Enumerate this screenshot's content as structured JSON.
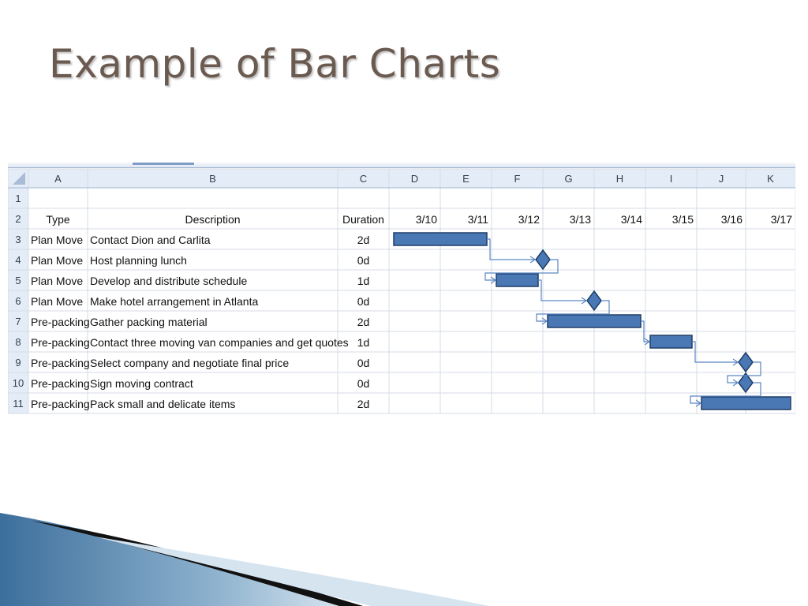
{
  "slide": {
    "title": "Example of Bar Charts"
  },
  "colors": {
    "title": "#6b5a50",
    "bar_fill": "#4a78b5",
    "bar_stroke": "#1f3d66",
    "arrow": "#5b86c3",
    "grid": "#d4dbe6",
    "header_fill": "#e4ecf7"
  },
  "sheet": {
    "column_headers": [
      "A",
      "B",
      "C",
      "D",
      "E",
      "F",
      "G",
      "H",
      "I",
      "J",
      "K"
    ],
    "row_numbers": [
      "1",
      "2",
      "3",
      "4",
      "5",
      "6",
      "7",
      "8",
      "9",
      "10",
      "11"
    ],
    "header_row": {
      "type": "Type",
      "description": "Description",
      "duration": "Duration"
    },
    "dates": [
      "3/10",
      "3/11",
      "3/12",
      "3/13",
      "3/14",
      "3/15",
      "3/16",
      "3/17"
    ]
  },
  "chart_data": {
    "type": "gantt",
    "x_axis_dates": [
      "3/10",
      "3/11",
      "3/12",
      "3/13",
      "3/14",
      "3/15",
      "3/16",
      "3/17"
    ],
    "tasks": [
      {
        "type": "Plan Move",
        "description": "Contact Dion and Carlita",
        "duration": "2d",
        "start": "3/10",
        "end": "3/11",
        "milestone": false
      },
      {
        "type": "Plan Move",
        "description": "Host planning  lunch",
        "duration": "0d",
        "start": "3/12",
        "end": "3/12",
        "milestone": true
      },
      {
        "type": "Plan Move",
        "description": "Develop and distribute schedule",
        "duration": "1d",
        "start": "3/12",
        "end": "3/12",
        "milestone": false
      },
      {
        "type": "Plan Move",
        "description": "Make hotel arrangement in Atlanta",
        "duration": "0d",
        "start": "3/13",
        "end": "3/13",
        "milestone": true
      },
      {
        "type": "Pre-packing",
        "description": "Gather packing material",
        "duration": "2d",
        "start": "3/13",
        "end": "3/14",
        "milestone": false
      },
      {
        "type": "Pre-packing",
        "description": "Contact three moving van companies and get quotes",
        "duration": "1d",
        "start": "3/15",
        "end": "3/15",
        "milestone": false
      },
      {
        "type": "Pre-packing",
        "description": "Select company and negotiate final price",
        "duration": "0d",
        "start": "3/16",
        "end": "3/16",
        "milestone": true
      },
      {
        "type": "Pre-packing",
        "description": "Sign moving contract",
        "duration": "0d",
        "start": "3/16",
        "end": "3/16",
        "milestone": true
      },
      {
        "type": "Pre-packing",
        "description": "Pack small and delicate items",
        "duration": "2d",
        "start": "3/16",
        "end": "3/17",
        "milestone": false
      }
    ]
  }
}
